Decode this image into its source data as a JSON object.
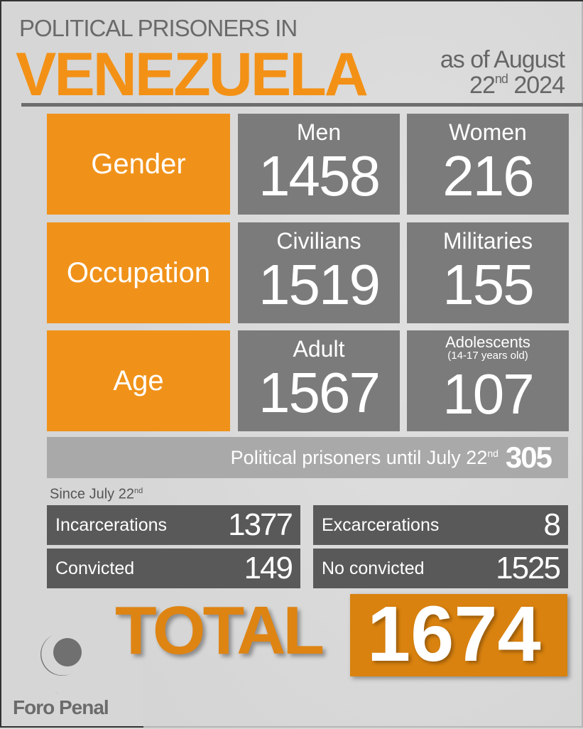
{
  "header": {
    "title_line1": "POLITICAL PRISONERS IN",
    "title_line2": "VENEZUELA",
    "date_line1": "as of August",
    "date_day": "22",
    "date_suffix": "nd",
    "date_year": "2024"
  },
  "rows": [
    {
      "category": "Gender",
      "left": {
        "label": "Men",
        "value": "1458"
      },
      "right": {
        "label": "Women",
        "value": "216"
      }
    },
    {
      "category": "Occupation",
      "left": {
        "label": "Civilians",
        "value": "1519"
      },
      "right": {
        "label": "Militaries",
        "value": "155"
      }
    },
    {
      "category": "Age",
      "left": {
        "label": "Adult",
        "value": "1567"
      },
      "right": {
        "label": "Adolescents",
        "sublabel": "(14-17 years old)",
        "value": "107"
      }
    }
  ],
  "until": {
    "label": "Political prisoners until July 22",
    "suffix": "nd",
    "value": "305"
  },
  "since": {
    "label": "Since July 22",
    "suffix": "nd"
  },
  "stats": [
    {
      "label": "Incarcerations",
      "value": "1377"
    },
    {
      "label": "Excarcerations",
      "value": "8"
    },
    {
      "label": "Convicted",
      "value": "149"
    },
    {
      "label": "No convicted",
      "value": "1525"
    }
  ],
  "total": {
    "label": "TOTAL",
    "value": "1674"
  },
  "logo": {
    "text": "Foro Penal",
    "icon": "foro-penal-logo-icon"
  },
  "colors": {
    "orange": "#f0921a",
    "gray": "#7b7b7b",
    "dark": "#595959",
    "background": "#d6d6d6"
  }
}
